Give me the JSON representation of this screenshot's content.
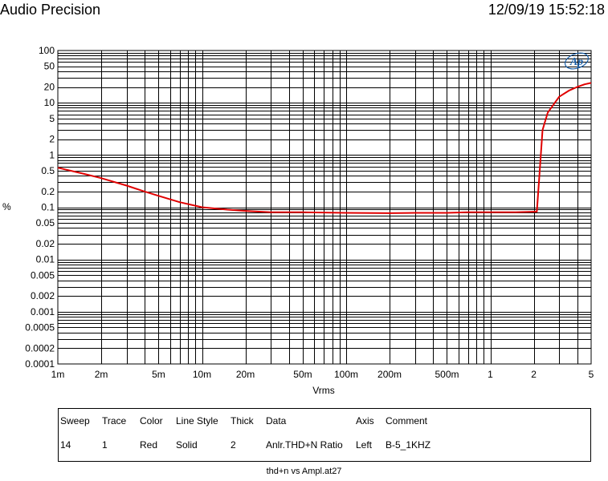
{
  "header": {
    "title": "Audio Precision",
    "timestamp": "12/09/19 15:52:18"
  },
  "chart_data": {
    "type": "line",
    "xlabel": "Vrms",
    "ylabel": "%",
    "x_scale": "log",
    "y_scale": "log",
    "xlim": [
      0.001,
      5
    ],
    "ylim": [
      0.0001,
      100
    ],
    "x_ticks": [
      {
        "v": 0.001,
        "label": "1m"
      },
      {
        "v": 0.002,
        "label": "2m"
      },
      {
        "v": 0.005,
        "label": "5m"
      },
      {
        "v": 0.01,
        "label": "10m"
      },
      {
        "v": 0.02,
        "label": "20m"
      },
      {
        "v": 0.05,
        "label": "50m"
      },
      {
        "v": 0.1,
        "label": "100m"
      },
      {
        "v": 0.2,
        "label": "200m"
      },
      {
        "v": 0.5,
        "label": "500m"
      },
      {
        "v": 1,
        "label": "1"
      },
      {
        "v": 2,
        "label": "2"
      },
      {
        "v": 5,
        "label": "5"
      }
    ],
    "y_ticks": [
      {
        "v": 100,
        "label": "100"
      },
      {
        "v": 50,
        "label": "50"
      },
      {
        "v": 20,
        "label": "20"
      },
      {
        "v": 10,
        "label": "10"
      },
      {
        "v": 5,
        "label": "5"
      },
      {
        "v": 2,
        "label": "2"
      },
      {
        "v": 1,
        "label": "1"
      },
      {
        "v": 0.5,
        "label": "0.5"
      },
      {
        "v": 0.2,
        "label": "0.2"
      },
      {
        "v": 0.1,
        "label": "0.1"
      },
      {
        "v": 0.05,
        "label": "0.05"
      },
      {
        "v": 0.02,
        "label": "0.02"
      },
      {
        "v": 0.01,
        "label": "0.01"
      },
      {
        "v": 0.005,
        "label": "0.005"
      },
      {
        "v": 0.002,
        "label": "0.002"
      },
      {
        "v": 0.001,
        "label": "0.001"
      },
      {
        "v": 0.0005,
        "label": "0.0005"
      },
      {
        "v": 0.0002,
        "label": "0.0002"
      },
      {
        "v": 0.0001,
        "label": "0.0001"
      }
    ],
    "grid": true,
    "logo_text": "Ap",
    "series": [
      {
        "color": "#e00000",
        "x": [
          0.001,
          0.0015,
          0.002,
          0.003,
          0.004,
          0.005,
          0.007,
          0.01,
          0.015,
          0.02,
          0.03,
          0.05,
          0.1,
          0.2,
          0.3,
          0.5,
          0.7,
          1.0,
          1.5,
          2.0,
          2.1,
          2.2,
          2.3,
          2.5,
          2.8,
          3.0,
          3.5,
          4.0,
          4.5,
          5.0
        ],
        "y": [
          0.57,
          0.44,
          0.36,
          0.26,
          0.2,
          0.165,
          0.125,
          0.1,
          0.09,
          0.085,
          0.08,
          0.08,
          0.078,
          0.077,
          0.078,
          0.078,
          0.08,
          0.08,
          0.08,
          0.082,
          0.082,
          0.5,
          3.0,
          6.5,
          10,
          13,
          17,
          20,
          22.5,
          24
        ]
      }
    ]
  },
  "legend": {
    "headers": {
      "sweep": "Sweep",
      "trace": "Trace",
      "color": "Color",
      "line_style": "Line Style",
      "thick": "Thick",
      "data": "Data",
      "axis": "Axis",
      "comment": "Comment"
    },
    "row": {
      "sweep": "14",
      "trace": "1",
      "color": "Red",
      "line_style": "Solid",
      "thick": "2",
      "data": "Anlr.THD+N Ratio",
      "axis": "Left",
      "comment": "B-5_1KHZ"
    }
  },
  "footer": "thd+n vs Ampl.at27"
}
